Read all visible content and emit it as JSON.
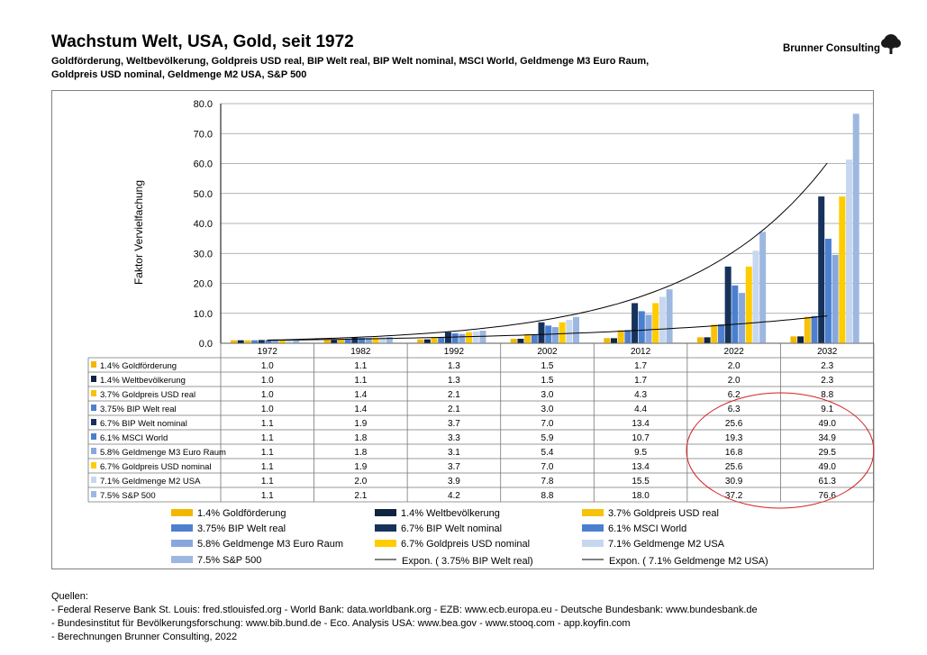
{
  "header": {
    "title": "Wachstum Welt, USA, Gold, seit 1972",
    "subtitle_line1": "Goldförderung, Weltbevölkerung, Goldpreis USD real, BIP Welt real, BIP Welt nominal, MSCI World, Geldmenge M3 Euro Raum,",
    "subtitle_line2": "Goldpreis USD nominal, Geldmenge M2 USA, S&P 500",
    "company": "Brunner Consulting"
  },
  "chart_data": {
    "type": "bar",
    "ylabel": "Faktor  Vervielfachung",
    "ylim": [
      0,
      80
    ],
    "yticks": [
      "0.0",
      "10.0",
      "20.0",
      "30.0",
      "40.0",
      "50.0",
      "60.0",
      "70.0",
      "80.0"
    ],
    "grid": "horizontal",
    "categories": [
      "1972",
      "1982",
      "1992",
      "2002",
      "2012",
      "2022",
      "2032"
    ],
    "series": [
      {
        "name": "1.4% Goldförderung",
        "color": "#f2b800",
        "values": [
          1.0,
          1.1,
          1.3,
          1.5,
          1.7,
          2.0,
          2.3
        ],
        "labels": [
          "1.0",
          "1.1",
          "1.3",
          "1.5",
          "1.7",
          "2.0",
          "2.3"
        ]
      },
      {
        "name": "1.4% Weltbevölkerung",
        "color": "#10233f",
        "values": [
          1.0,
          1.1,
          1.3,
          1.5,
          1.7,
          2.0,
          2.3
        ],
        "labels": [
          "1.0",
          "1.1",
          "1.3",
          "1.5",
          "1.7",
          "2.0",
          "2.3"
        ]
      },
      {
        "name": "3.7%  Goldpreis USD real",
        "color": "#f7c20a",
        "values": [
          1.0,
          1.4,
          2.1,
          3.0,
          4.3,
          6.2,
          8.8
        ],
        "labels": [
          "1.0",
          "1.4",
          "2.1",
          "3.0",
          "4.3",
          "6.2",
          "8.8"
        ]
      },
      {
        "name": "3.75% BIP Welt real",
        "color": "#4f7fce",
        "values": [
          1.0,
          1.4,
          2.1,
          3.0,
          4.4,
          6.3,
          9.1
        ],
        "labels": [
          "1.0",
          "1.4",
          "2.1",
          "3.0",
          "4.4",
          "6.3",
          "9.1"
        ]
      },
      {
        "name": "6.7% BIP Welt nominal",
        "color": "#17325a",
        "values": [
          1.1,
          1.9,
          3.7,
          7.0,
          13.4,
          25.6,
          49.0
        ],
        "labels": [
          "1.1",
          "1.9",
          "3.7",
          "7.0",
          "13.4",
          "25.6",
          "49.0"
        ]
      },
      {
        "name": "6.1% MSCI World",
        "color": "#4a80d0",
        "values": [
          1.1,
          1.8,
          3.3,
          5.9,
          10.7,
          19.3,
          34.9
        ],
        "labels": [
          "1.1",
          "1.8",
          "3.3",
          "5.9",
          "10.7",
          "19.3",
          "34.9"
        ]
      },
      {
        "name": "5.8% Geldmenge M3 Euro Raum",
        "color": "#88a8dc",
        "values": [
          1.1,
          1.8,
          3.1,
          5.4,
          9.5,
          16.8,
          29.5
        ],
        "labels": [
          "1.1",
          "1.8",
          "3.1",
          "5.4",
          "9.5",
          "16.8",
          "29.5"
        ]
      },
      {
        "name": "6.7% Goldpreis USD nominal",
        "color": "#ffcc00",
        "values": [
          1.1,
          1.9,
          3.7,
          7.0,
          13.4,
          25.6,
          49.0
        ],
        "labels": [
          "1.1",
          "1.9",
          "3.7",
          "7.0",
          "13.4",
          "25.6",
          "49.0"
        ]
      },
      {
        "name": "7.1% Geldmenge M2 USA",
        "color": "#c7d7f0",
        "values": [
          1.1,
          2.0,
          3.9,
          7.8,
          15.5,
          30.9,
          61.3
        ],
        "labels": [
          "1.1",
          "2.0",
          "3.9",
          "7.8",
          "15.5",
          "30.9",
          "61.3"
        ]
      },
      {
        "name": "7.5% S&P 500",
        "color": "#9db8e0",
        "values": [
          1.1,
          2.1,
          4.2,
          8.8,
          18.0,
          37.2,
          76.6
        ],
        "labels": [
          "1.1",
          "2.1",
          "4.2",
          "8.8",
          "18.0",
          "37.2",
          "76.6"
        ]
      }
    ],
    "table_row_labels": [
      "1.4% Goldförderung",
      "1.4% Weltbevölkerung",
      "3.7%  Goldpreis USD real",
      "3.75% BIP Welt real",
      "6.7% BIP Welt nominal",
      "6.1% MSCI World",
      "5.8% Geldmenge M3 Euro Raum",
      "6.7% Goldpreis USD nominal",
      "7.1% Geldmenge M2 USA",
      " 7.5% S&P 500"
    ],
    "legend": {
      "placement": "bottom",
      "bar_labels": [
        "1.4% Goldförderung",
        "3.75% BIP Welt real",
        "5.8% Geldmenge M3 Euro Raum",
        "7.5% S&P 500",
        "1.4% Weltbevölkerung",
        "6.7% BIP Welt nominal",
        "6.7% Goldpreis USD nominal",
        "3.7%  Goldpreis USD real",
        "6.1% MSCI World",
        "7.1% Geldmenge M2 USA"
      ],
      "trend_labels": [
        "Expon. (  3.75% BIP Welt real)",
        "Expon. (  7.1% Geldmenge M2 USA)"
      ]
    },
    "trendlines": [
      {
        "name": "Expon. (  3.75% BIP Welt real)",
        "base_series": "3.75% BIP Welt real",
        "color": "#000000"
      },
      {
        "name": "Expon. (  7.1% Geldmenge M2 USA)",
        "base_series": "7.1% Geldmenge M2 USA",
        "color": "#000000"
      }
    ],
    "annotation": "red ellipse around the 2022 and 2032 table values"
  },
  "sources": {
    "heading": "Quellen:",
    "lines": [
      "- Federal Reserve Bank St. Louis: fred.stlouisfed.org - World Bank: data.worldbank.org - EZB: www.ecb.europa.eu - Deutsche Bundesbank: www.bundesbank.de",
      "- Bundesinstitut für Bevölkerungsforschung: www.bib.bund.de - Eco. Analysis USA: www.bea.gov - www.stooq.com - app.koyfin.com",
      "- Berechnungen Brunner Consulting, 2022"
    ]
  }
}
